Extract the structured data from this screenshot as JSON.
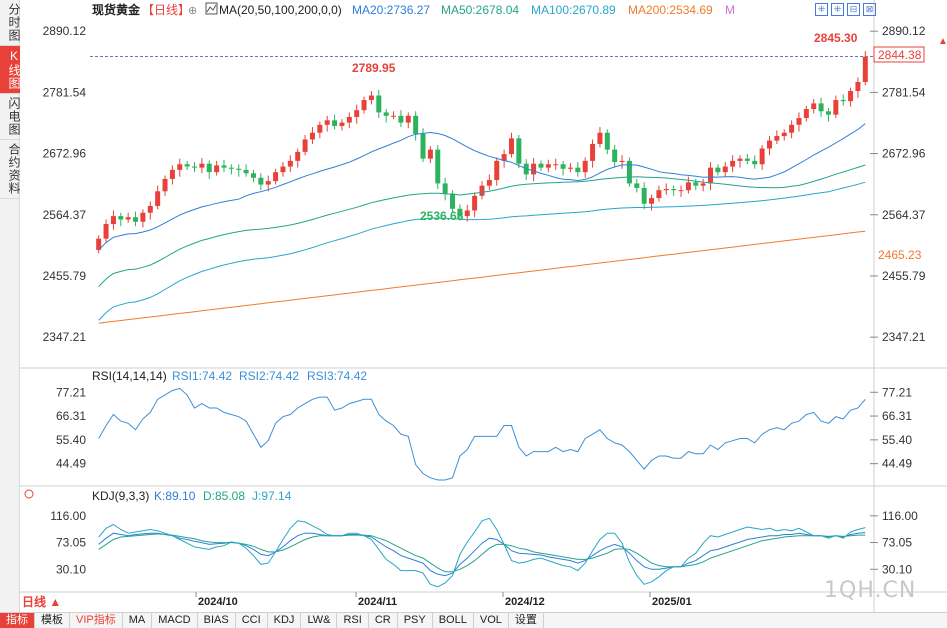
{
  "left_tabs": [
    {
      "label": "分时图",
      "active": false
    },
    {
      "label": "K线图",
      "active": true
    },
    {
      "label": "闪电图",
      "active": false
    },
    {
      "label": "合约资料",
      "active": false
    }
  ],
  "header": {
    "symbol": "现货黄金",
    "period": "【日线】",
    "add_icon": "⊕",
    "ma_params": "MA(20,50,100,200,0,0)",
    "ma20": "MA20:2736.27",
    "ma50": "MA50:2678.04",
    "ma100": "MA100:2670.89",
    "ma200": "MA200:2534.69",
    "m_label": "M"
  },
  "tool_icons": [
    "⁜",
    "⁜",
    "⊟",
    "⊠"
  ],
  "price_axis": [
    "2890.12",
    "2781.54",
    "2672.96",
    "2564.37",
    "2455.79",
    "2347.21"
  ],
  "price_tags": {
    "last": "2844.38",
    "ma200": "2465.23"
  },
  "annotations": {
    "high": "2845.30",
    "peak": "2789.95",
    "low": "2536.68"
  },
  "rsi": {
    "params": "RSI(14,14,14)",
    "rsi1": "RSI1:74.42",
    "rsi2": "RSI2:74.42",
    "rsi3": "RSI3:74.42",
    "axis": [
      "77.21",
      "66.31",
      "55.40",
      "44.49"
    ]
  },
  "kdj": {
    "params": "KDJ(9,3,3)",
    "k": "K:89.10",
    "d": "D:85.08",
    "j": "J:97.14",
    "axis": [
      "116.00",
      "73.05",
      "30.10"
    ]
  },
  "x_axis": [
    "2024/10",
    "2024/11",
    "2024/12",
    "2025/01"
  ],
  "period_button": "日线 ▲",
  "bottom_tabs": [
    {
      "label": "指标",
      "active": true
    },
    {
      "label": "模板",
      "active": false
    },
    {
      "label": "VIP指标",
      "active": false,
      "vip": true
    },
    {
      "label": "MA",
      "active": false
    },
    {
      "label": "MACD",
      "active": false
    },
    {
      "label": "BIAS",
      "active": false
    },
    {
      "label": "CCI",
      "active": false
    },
    {
      "label": "KDJ",
      "active": false
    },
    {
      "label": "LW&",
      "active": false
    },
    {
      "label": "RSI",
      "active": false
    },
    {
      "label": "CR",
      "active": false
    },
    {
      "label": "PSY",
      "active": false
    },
    {
      "label": "BOLL",
      "active": false
    },
    {
      "label": "VOL",
      "active": false
    },
    {
      "label": "设置",
      "active": false
    }
  ],
  "watermark": "1QH.CN",
  "colors": {
    "up": "#e8413a",
    "down": "#2db35d",
    "ma20": "#2f7fd8",
    "ma50": "#22a58a",
    "ma100": "#2aa6c8",
    "ma200": "#f07b2a",
    "rsi": "#3a8fd9",
    "kdj_k": "#2f7fd8",
    "kdj_d": "#22a58a",
    "kdj_j": "#2aa6c8"
  },
  "chart_data": {
    "type": "candlestick",
    "price_range": [
      2296,
      2910
    ],
    "closes": [
      2522,
      2548,
      2562,
      2556,
      2560,
      2552,
      2568,
      2580,
      2606,
      2628,
      2644,
      2654,
      2650,
      2648,
      2655,
      2640,
      2652,
      2648,
      2646,
      2644,
      2638,
      2630,
      2618,
      2624,
      2640,
      2650,
      2660,
      2676,
      2698,
      2710,
      2724,
      2732,
      2722,
      2728,
      2738,
      2750,
      2768,
      2776,
      2746,
      2740,
      2740,
      2728,
      2740,
      2708,
      2664,
      2680,
      2620,
      2602,
      2575,
      2562,
      2572,
      2598,
      2616,
      2626,
      2660,
      2672,
      2700,
      2655,
      2636,
      2655,
      2648,
      2654,
      2654,
      2646,
      2648,
      2640,
      2660,
      2690,
      2710,
      2680,
      2658,
      2660,
      2620,
      2612,
      2584,
      2594,
      2608,
      2610,
      2608,
      2608,
      2622,
      2616,
      2620,
      2648,
      2640,
      2650,
      2660,
      2664,
      2660,
      2654,
      2682,
      2696,
      2704,
      2710,
      2724,
      2736,
      2752,
      2762,
      2748,
      2742,
      2768,
      2766,
      2784,
      2800,
      2845
    ],
    "rsi_range": [
      37,
      81
    ],
    "rsi": [
      56,
      62,
      67,
      64,
      63,
      60,
      65,
      68,
      74,
      76,
      78,
      79,
      76,
      70,
      72,
      70,
      70,
      68,
      67,
      66,
      64,
      58,
      52,
      55,
      63,
      66,
      67,
      70,
      72,
      74,
      75,
      75,
      69,
      70,
      72,
      73,
      74,
      74,
      67,
      64,
      62,
      58,
      57,
      44,
      40,
      38,
      37,
      37,
      38,
      48,
      51,
      57,
      57,
      57,
      57,
      62,
      62,
      52,
      48,
      50,
      50,
      50,
      52,
      50,
      51,
      50,
      56,
      58,
      60,
      56,
      54,
      53,
      50,
      46,
      42,
      46,
      48,
      48,
      47,
      47,
      50,
      49,
      49,
      53,
      51,
      54,
      55,
      56,
      56,
      54,
      58,
      60,
      61,
      60,
      63,
      64,
      67,
      68,
      64,
      63,
      66,
      65,
      69,
      70,
      74
    ],
    "kdj_range": [
      0,
      135
    ],
    "k": [
      70,
      80,
      88,
      86,
      84,
      86,
      87,
      88,
      88,
      86,
      84,
      80,
      78,
      75,
      73,
      70,
      71,
      72,
      74,
      72,
      68,
      62,
      54,
      52,
      58,
      66,
      76,
      84,
      88,
      88,
      86,
      84,
      84,
      84,
      86,
      86,
      84,
      82,
      74,
      66,
      60,
      52,
      48,
      44,
      40,
      28,
      22,
      20,
      24,
      38,
      48,
      60,
      72,
      80,
      78,
      70,
      60,
      56,
      55,
      54,
      53,
      50,
      48,
      46,
      44,
      40,
      44,
      52,
      60,
      66,
      70,
      66,
      56,
      44,
      34,
      30,
      30,
      32,
      34,
      34,
      40,
      44,
      52,
      60,
      62,
      66,
      70,
      74,
      78,
      80,
      82,
      84,
      84,
      86,
      86,
      88,
      86,
      84,
      84,
      82,
      84,
      82,
      86,
      88,
      89
    ],
    "d": [
      62,
      70,
      78,
      82,
      83,
      84,
      85,
      86,
      87,
      86,
      85,
      83,
      81,
      79,
      76,
      74,
      73,
      73,
      73,
      72,
      70,
      67,
      62,
      58,
      58,
      61,
      66,
      72,
      78,
      82,
      84,
      84,
      84,
      84,
      85,
      85,
      85,
      84,
      80,
      76,
      70,
      64,
      58,
      52,
      48,
      40,
      32,
      26,
      26,
      30,
      36,
      44,
      54,
      64,
      70,
      70,
      68,
      64,
      62,
      58,
      56,
      54,
      52,
      50,
      48,
      46,
      46,
      48,
      52,
      56,
      62,
      63,
      62,
      56,
      48,
      40,
      36,
      34,
      34,
      34,
      36,
      38,
      42,
      48,
      52,
      56,
      60,
      64,
      68,
      72,
      76,
      78,
      80,
      82,
      83,
      84,
      84,
      84,
      84,
      83,
      84,
      83,
      84,
      85,
      85
    ],
    "j": [
      82,
      96,
      102,
      94,
      88,
      90,
      92,
      94,
      92,
      88,
      84,
      78,
      72,
      66,
      64,
      62,
      66,
      68,
      74,
      72,
      64,
      52,
      38,
      40,
      58,
      78,
      96,
      108,
      106,
      100,
      94,
      86,
      84,
      84,
      88,
      88,
      84,
      78,
      62,
      46,
      38,
      28,
      28,
      28,
      24,
      6,
      2,
      8,
      20,
      54,
      74,
      90,
      108,
      112,
      94,
      70,
      44,
      40,
      42,
      46,
      48,
      44,
      40,
      36,
      34,
      28,
      40,
      60,
      78,
      88,
      88,
      72,
      42,
      20,
      6,
      10,
      18,
      28,
      34,
      34,
      48,
      56,
      72,
      84,
      82,
      86,
      90,
      94,
      98,
      96,
      94,
      96,
      92,
      94,
      92,
      96,
      90,
      84,
      84,
      80,
      84,
      80,
      90,
      94,
      97
    ]
  }
}
